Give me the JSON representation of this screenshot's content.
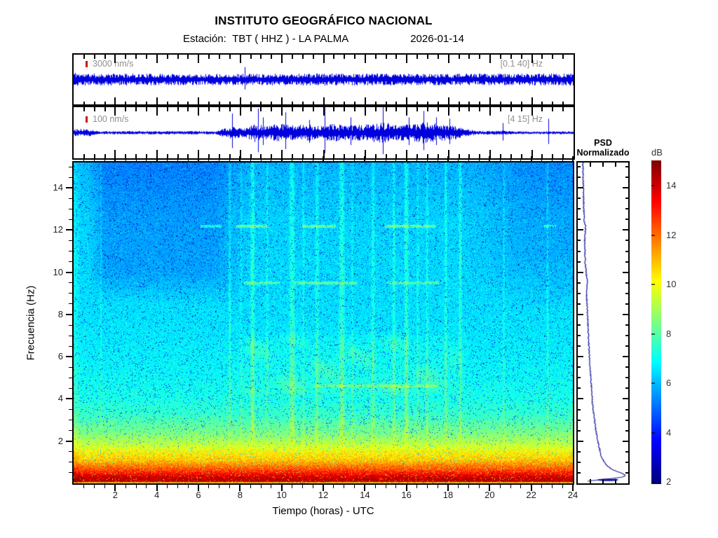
{
  "title": "INSTITUTO GEOGRÁFICO NACIONAL",
  "subtitle": {
    "station_label": "Estación:",
    "station": "TBT ( HHZ ) - LA PALMA",
    "date": "2026-01-14"
  },
  "chart_data": [
    {
      "type": "line",
      "name": "seismogram-broadband",
      "scale_bar": "3000 nm/s",
      "filter_band": "[0.1 40] Hz",
      "x_range_hours": [
        0,
        24
      ],
      "color": "#0000dd",
      "description": "continuous background noise of nearly constant amplitude",
      "amplitude_envelope": [
        [
          0,
          0.28
        ],
        [
          0.4,
          0.22
        ],
        [
          6,
          0.21
        ],
        [
          12,
          0.22
        ],
        [
          18,
          0.21
        ],
        [
          24,
          0.22
        ]
      ],
      "spikes": [
        [
          8.2,
          0.5
        ]
      ]
    },
    {
      "type": "line",
      "name": "seismogram-filtered",
      "scale_bar": "100 nm/s",
      "filter_band": "[4 15] Hz",
      "x_range_hours": [
        0,
        24
      ],
      "color": "#0000dd",
      "description": "quiet until ~07:30 UTC, bursts and spikes 07:30-18:30, quiet after",
      "amplitude_envelope": [
        [
          0,
          0.13
        ],
        [
          0.6,
          0.15
        ],
        [
          1.2,
          0.06
        ],
        [
          6.8,
          0.06
        ],
        [
          7.5,
          0.22
        ],
        [
          8.2,
          0.16
        ],
        [
          8.7,
          0.34
        ],
        [
          9.3,
          0.22
        ],
        [
          9.8,
          0.34
        ],
        [
          10.4,
          0.26
        ],
        [
          11.2,
          0.3
        ],
        [
          11.8,
          0.24
        ],
        [
          12.3,
          0.34
        ],
        [
          13,
          0.26
        ],
        [
          13.8,
          0.28
        ],
        [
          14.8,
          0.38
        ],
        [
          15.6,
          0.28
        ],
        [
          16.2,
          0.3
        ],
        [
          16.9,
          0.4
        ],
        [
          17.6,
          0.3
        ],
        [
          18.3,
          0.24
        ],
        [
          18.9,
          0.12
        ],
        [
          19.6,
          0.06
        ],
        [
          20.6,
          0.08
        ],
        [
          21.4,
          0.05
        ],
        [
          22.4,
          0.05
        ],
        [
          23.2,
          0.05
        ],
        [
          24,
          0.05
        ]
      ],
      "spikes": [
        [
          7.6,
          0.75
        ],
        [
          8.85,
          0.95
        ],
        [
          9.1,
          0.6
        ],
        [
          10.15,
          0.8
        ],
        [
          11.3,
          0.5
        ],
        [
          12.05,
          1.0
        ],
        [
          13.3,
          0.6
        ],
        [
          14.85,
          1.05
        ],
        [
          16.1,
          0.6
        ],
        [
          16.8,
          0.85
        ],
        [
          17.4,
          0.6
        ],
        [
          18.05,
          0.55
        ],
        [
          20.6,
          0.38
        ],
        [
          22.8,
          0.55
        ]
      ]
    },
    {
      "type": "heatmap",
      "name": "spectrogram",
      "xlabel": "Tiempo (horas) - UTC",
      "ylabel": "Frecuencia  (Hz)",
      "x_range": [
        0,
        24
      ],
      "y_range": [
        0,
        15.2
      ],
      "x_ticks": [
        2,
        4,
        6,
        8,
        10,
        12,
        14,
        16,
        18,
        20,
        22,
        24
      ],
      "y_ticks": [
        2,
        4,
        6,
        8,
        10,
        12,
        14
      ],
      "minor_step_hours": 0.5,
      "minor_step_hz": 0.5,
      "colormap": "jet",
      "value_range_db": [
        2,
        15
      ],
      "background_profile_hz_db": [
        [
          0,
          9.0
        ],
        [
          0.05,
          13.5
        ],
        [
          0.12,
          14.35
        ],
        [
          0.3,
          13.9
        ],
        [
          0.5,
          13.0
        ],
        [
          0.7,
          12.2
        ],
        [
          0.9,
          11.5
        ],
        [
          1.1,
          10.8
        ],
        [
          1.4,
          10.3
        ],
        [
          1.7,
          9.6
        ],
        [
          2.0,
          9.05
        ],
        [
          2.4,
          8.4
        ],
        [
          2.8,
          8.0
        ],
        [
          3.2,
          7.55
        ],
        [
          3.6,
          7.35
        ],
        [
          4.0,
          7.15
        ],
        [
          5.0,
          6.9
        ],
        [
          6.0,
          6.75
        ],
        [
          7.0,
          6.62
        ],
        [
          8.0,
          6.52
        ],
        [
          9.0,
          6.46
        ],
        [
          10.0,
          6.42
        ],
        [
          11.0,
          6.38
        ],
        [
          12.0,
          6.35
        ],
        [
          13.0,
          6.32
        ],
        [
          15.2,
          6.3
        ]
      ],
      "features": {
        "quiet_patch_high_freq": {
          "hours": [
            0.7,
            8.5
          ],
          "freq_above": 8.5,
          "delta_db": -0.7
        },
        "quiet_top_right": {
          "hours": [
            18.5,
            24
          ],
          "freq_above": 8.0,
          "delta_db": -0.55
        },
        "high_freq_blue_tint": {
          "freq_above": 12.5,
          "delta_db": -0.35
        },
        "tremor_band": {
          "hours": [
            7.5,
            19
          ],
          "freq": [
            4,
            7.2
          ],
          "delta_db": 0.5
        },
        "left_edge_column": {
          "hours": [
            0,
            0.35
          ],
          "delta_db": 0.55
        },
        "vertical_streaks_hour_width_strength": [
          [
            1.3,
            0.05,
            0.45
          ],
          [
            7.5,
            0.08,
            0.6
          ],
          [
            8.05,
            0.06,
            0.4
          ],
          [
            8.6,
            0.12,
            0.85
          ],
          [
            9.3,
            0.07,
            0.5
          ],
          [
            10.5,
            0.16,
            0.8
          ],
          [
            11.05,
            0.06,
            0.45
          ],
          [
            11.7,
            0.1,
            0.65
          ],
          [
            12.9,
            0.16,
            0.85
          ],
          [
            13.4,
            0.06,
            0.45
          ],
          [
            14.4,
            0.1,
            0.65
          ],
          [
            15.4,
            0.08,
            0.75
          ],
          [
            16.0,
            0.12,
            0.85
          ],
          [
            16.55,
            0.06,
            0.5
          ],
          [
            17.0,
            0.08,
            0.55
          ],
          [
            17.9,
            0.08,
            0.75
          ],
          [
            18.6,
            0.1,
            0.75
          ],
          [
            20.7,
            0.06,
            0.5
          ],
          [
            22.8,
            0.06,
            0.55
          ]
        ],
        "horizontal_lines": [
          {
            "freq": 12.2,
            "hours": [
              6.1,
              7.1
            ],
            "delta_db": 1.4
          },
          {
            "freq": 12.2,
            "hours": [
              7.8,
              9.3
            ],
            "delta_db": 1.6
          },
          {
            "freq": 12.2,
            "hours": [
              11.0,
              12.6
            ],
            "delta_db": 1.6
          },
          {
            "freq": 12.2,
            "hours": [
              15.0,
              17.4
            ],
            "delta_db": 1.6
          },
          {
            "freq": 12.2,
            "hours": [
              22.6,
              23.2
            ],
            "delta_db": 1.2
          },
          {
            "freq": 9.5,
            "hours": [
              8.2,
              9.9
            ],
            "delta_db": 1.3
          },
          {
            "freq": 9.5,
            "hours": [
              10.6,
              13.6
            ],
            "delta_db": 1.4
          },
          {
            "freq": 9.5,
            "hours": [
              15.1,
              17.6
            ],
            "delta_db": 1.2
          },
          {
            "freq": 4.6,
            "hours": [
              11.5,
              17.5
            ],
            "delta_db": 1.0
          }
        ]
      }
    },
    {
      "type": "line",
      "name": "psd-normalizado",
      "title": "PSD Normalizado",
      "title_line1": "PSD",
      "title_line2": "Normalizado",
      "color": "#1a1aa0",
      "x_axis": "normalized PSD (0-1)",
      "y_axis": "frequency Hz (shared with spectrogram)",
      "points_freq_value": [
        [
          15.2,
          0.08
        ],
        [
          14,
          0.09
        ],
        [
          13,
          0.1
        ],
        [
          12.4,
          0.11
        ],
        [
          12.2,
          0.14
        ],
        [
          11.5,
          0.12
        ],
        [
          10.5,
          0.13
        ],
        [
          10,
          0.15
        ],
        [
          9.5,
          0.18
        ],
        [
          9,
          0.16
        ],
        [
          8,
          0.18
        ],
        [
          7,
          0.2
        ],
        [
          6,
          0.22
        ],
        [
          5,
          0.25
        ],
        [
          4.5,
          0.27
        ],
        [
          4,
          0.28
        ],
        [
          3.5,
          0.3
        ],
        [
          3,
          0.33
        ],
        [
          2.5,
          0.36
        ],
        [
          2,
          0.4
        ],
        [
          1.5,
          0.45
        ],
        [
          1.2,
          0.49
        ],
        [
          1.0,
          0.53
        ],
        [
          0.8,
          0.6
        ],
        [
          0.6,
          0.74
        ],
        [
          0.45,
          0.92
        ],
        [
          0.35,
          1.0
        ],
        [
          0.28,
          0.97
        ],
        [
          0.2,
          0.72
        ],
        [
          0.15,
          0.5
        ],
        [
          0.1,
          0.3
        ],
        [
          0.05,
          0.12
        ]
      ]
    },
    {
      "type": "colorbar",
      "name": "colorbar",
      "label": "dB",
      "ticks": [
        2,
        4,
        6,
        8,
        10,
        12,
        14
      ],
      "range": [
        2,
        15
      ],
      "colormap": "jet"
    }
  ]
}
